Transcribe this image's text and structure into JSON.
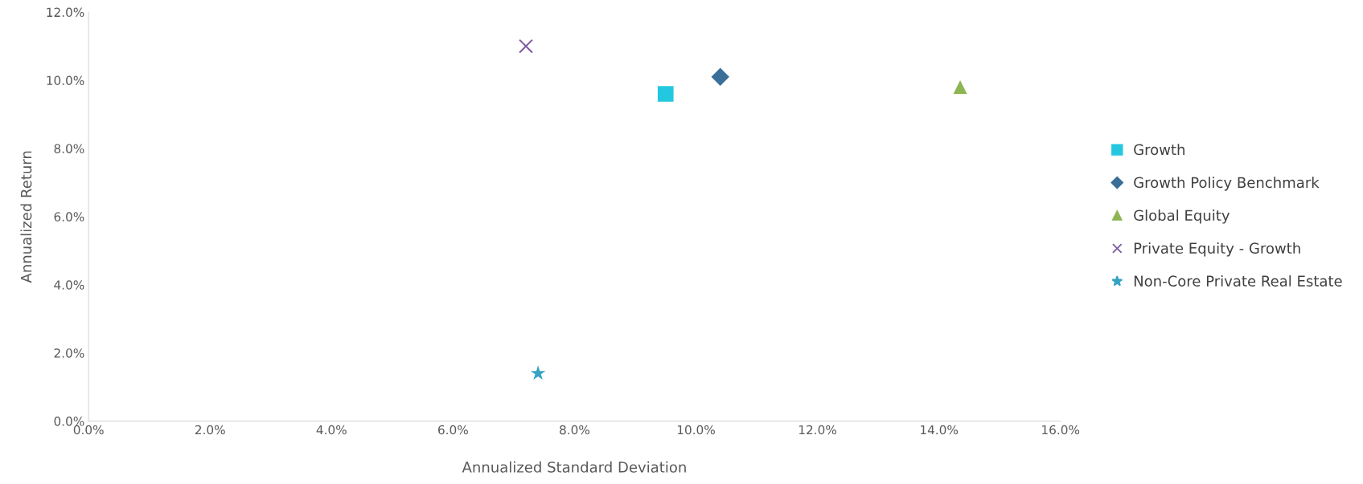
{
  "chart_data": {
    "type": "scatter",
    "xlabel": "Annualized Standard Deviation",
    "ylabel": "Annualized Return",
    "xlim": [
      0,
      16
    ],
    "ylim": [
      0,
      12
    ],
    "xticks": [
      {
        "value": 0,
        "label": "0.0%"
      },
      {
        "value": 2,
        "label": "2.0%"
      },
      {
        "value": 4,
        "label": "4.0%"
      },
      {
        "value": 6,
        "label": "6.0%"
      },
      {
        "value": 8,
        "label": "8.0%"
      },
      {
        "value": 10,
        "label": "10.0%"
      },
      {
        "value": 12,
        "label": "12.0%"
      },
      {
        "value": 14,
        "label": "14.0%"
      },
      {
        "value": 16,
        "label": "16.0%"
      }
    ],
    "yticks": [
      {
        "value": 0,
        "label": "0.0%"
      },
      {
        "value": 2,
        "label": "2.0%"
      },
      {
        "value": 4,
        "label": "4.0%"
      },
      {
        "value": 6,
        "label": "6.0%"
      },
      {
        "value": 8,
        "label": "8.0%"
      },
      {
        "value": 10,
        "label": "10.0%"
      },
      {
        "value": 12,
        "label": "12.0%"
      }
    ],
    "grid": false,
    "legend": "right",
    "series": [
      {
        "name": "Growth",
        "color": "#23c8e0",
        "marker": "square",
        "x": [
          9.5
        ],
        "values": [
          9.6
        ]
      },
      {
        "name": "Growth Policy Benchmark",
        "color": "#3a6f99",
        "marker": "diamond",
        "x": [
          10.4
        ],
        "values": [
          10.1
        ]
      },
      {
        "name": "Global Equity",
        "color": "#8db552",
        "marker": "triangle",
        "x": [
          14.35
        ],
        "values": [
          9.8
        ]
      },
      {
        "name": "Private Equity - Growth",
        "color": "#7e5aa0",
        "marker": "cross",
        "x": [
          7.2
        ],
        "values": [
          11.0
        ]
      },
      {
        "name": "Non-Core Private Real Estate",
        "color": "#36a3c4",
        "marker": "star",
        "x": [
          7.4
        ],
        "values": [
          1.4
        ]
      }
    ]
  }
}
